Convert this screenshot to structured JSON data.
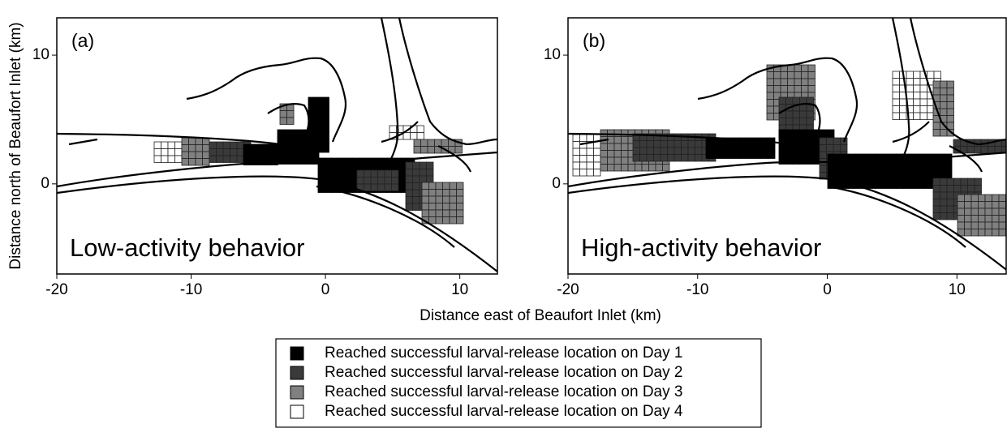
{
  "chart_data": [
    {
      "type": "map",
      "panel_label": "(a)",
      "annotation": "Low-activity behavior",
      "xlim": [
        -20,
        12.8
      ],
      "ylim": [
        -7,
        12.9
      ],
      "xticks": [
        -20,
        -10,
        0,
        10
      ],
      "yticks": [
        0,
        10
      ]
    },
    {
      "type": "map",
      "panel_label": "(b)",
      "annotation": "High-activity behavior",
      "xlim": [
        -20,
        13.8
      ],
      "ylim": [
        -7,
        12.9
      ],
      "xticks": [
        -20,
        -10,
        0,
        10
      ],
      "yticks": [
        0,
        10
      ]
    }
  ],
  "xlabel": "Distance east of Beaufort Inlet (km)",
  "ylabel": "Distance north of Beaufort Inlet (km)",
  "legend": [
    {
      "name": "Reached successful larval-release location on Day 1",
      "color": "#000000"
    },
    {
      "name": "Reached successful larval-release location on Day 2",
      "color": "#3a3a3a"
    },
    {
      "name": "Reached successful larval-release location on Day 3",
      "color": "#808080"
    },
    {
      "name": "Reached successful larval-release location on Day 4",
      "color": "#ffffff"
    }
  ]
}
